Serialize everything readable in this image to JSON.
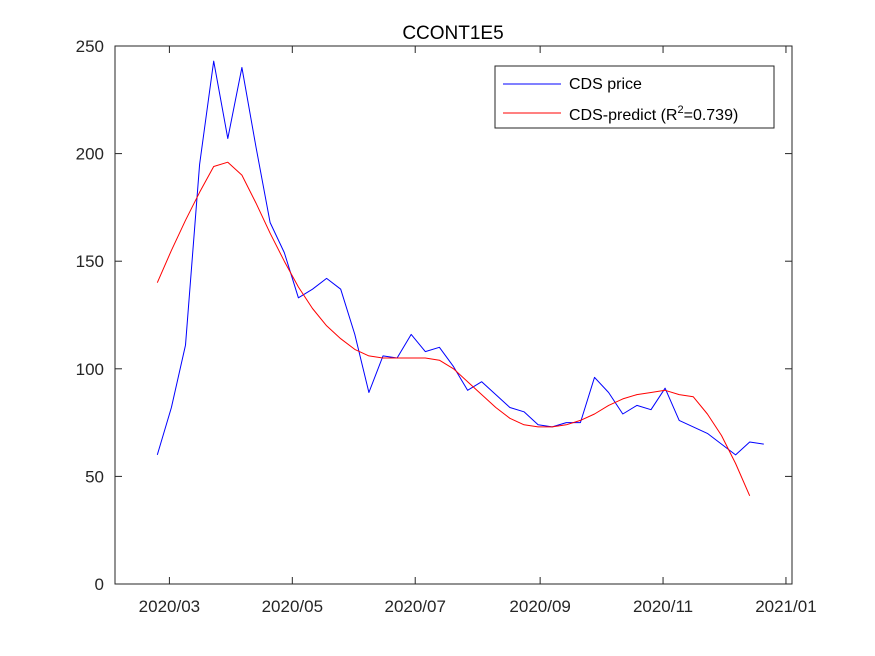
{
  "chart_data": {
    "type": "line",
    "title": "CCONT1E5",
    "x_ticks": [
      "2020/03",
      "2020/05",
      "2020/07",
      "2020/09",
      "2020/11",
      "2021/01"
    ],
    "y_ticks": [
      "0",
      "50",
      "100",
      "150",
      "200",
      "250"
    ],
    "xlim": [
      "2020-02-03",
      "2021-01-04"
    ],
    "ylim": [
      0,
      250
    ],
    "grid": false,
    "legend_position": "top-right",
    "legend": {
      "cds_label": "CDS price",
      "predict_label_prefix": "CDS-predict (R",
      "predict_label_sup": "2",
      "predict_label_suffix": "=0.739)"
    },
    "series": [
      {
        "name": "CDS price",
        "color": "#0000ff",
        "x": [
          "2020-02-24",
          "2020-03-02",
          "2020-03-09",
          "2020-03-16",
          "2020-03-23",
          "2020-03-30",
          "2020-04-06",
          "2020-04-13",
          "2020-04-20",
          "2020-04-27",
          "2020-05-04",
          "2020-05-11",
          "2020-05-18",
          "2020-05-25",
          "2020-06-01",
          "2020-06-08",
          "2020-06-15",
          "2020-06-22",
          "2020-06-29",
          "2020-07-06",
          "2020-07-13",
          "2020-07-20",
          "2020-07-27",
          "2020-08-03",
          "2020-08-10",
          "2020-08-17",
          "2020-08-24",
          "2020-08-31",
          "2020-09-07",
          "2020-09-14",
          "2020-09-21",
          "2020-09-28",
          "2020-10-05",
          "2020-10-12",
          "2020-10-19",
          "2020-10-26",
          "2020-11-02",
          "2020-11-09",
          "2020-11-16",
          "2020-11-23",
          "2020-11-30",
          "2020-12-07",
          "2020-12-14",
          "2020-12-21",
          "2020-12-28"
        ],
        "y": [
          60,
          82,
          111,
          195,
          243,
          207,
          240,
          203,
          168,
          154,
          133,
          137,
          142,
          137,
          116,
          89,
          106,
          105,
          116,
          108,
          110,
          101,
          90,
          94,
          88,
          82,
          80,
          74,
          73,
          75,
          75,
          96,
          89,
          79,
          83,
          81,
          91,
          76,
          73,
          70,
          65,
          60,
          66,
          65,
          null
        ]
      },
      {
        "name": "CDS-predict (R2=0.739)",
        "color": "#ff0000",
        "x": [
          "2020-02-24",
          "2020-03-02",
          "2020-03-09",
          "2020-03-16",
          "2020-03-23",
          "2020-03-30",
          "2020-04-06",
          "2020-04-13",
          "2020-04-20",
          "2020-04-27",
          "2020-05-04",
          "2020-05-11",
          "2020-05-18",
          "2020-05-25",
          "2020-06-01",
          "2020-06-08",
          "2020-06-15",
          "2020-06-22",
          "2020-06-29",
          "2020-07-06",
          "2020-07-13",
          "2020-07-20",
          "2020-07-27",
          "2020-08-03",
          "2020-08-10",
          "2020-08-17",
          "2020-08-24",
          "2020-08-31",
          "2020-09-07",
          "2020-09-14",
          "2020-09-21",
          "2020-09-28",
          "2020-10-05",
          "2020-10-12",
          "2020-10-19",
          "2020-10-26",
          "2020-11-02",
          "2020-11-09",
          "2020-11-16",
          "2020-11-23",
          "2020-11-30",
          "2020-12-07",
          "2020-12-14",
          "2020-12-21"
        ],
        "y": [
          140,
          155,
          169,
          182,
          194,
          196,
          190,
          177,
          163,
          150,
          138,
          128,
          120,
          114,
          109,
          106,
          105,
          105,
          105,
          105,
          104,
          100,
          94,
          88,
          82,
          77,
          74,
          73,
          73,
          74,
          76,
          79,
          83,
          86,
          88,
          89,
          90,
          88,
          87,
          79,
          69,
          56,
          41,
          null
        ]
      }
    ]
  }
}
